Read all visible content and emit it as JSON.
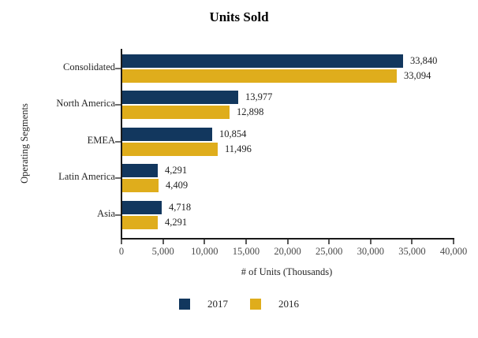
{
  "chart_data": {
    "type": "bar",
    "orientation": "horizontal",
    "title": "Units Sold",
    "xlabel": "# of Units (Thousands)",
    "ylabel": "Operating Segments",
    "categories": [
      "Consolidated",
      "North America",
      "EMEA",
      "Latin America",
      "Asia"
    ],
    "series": [
      {
        "name": "2017",
        "color": "#12375E",
        "values": [
          33840,
          13977,
          10854,
          4291,
          4718
        ],
        "value_labels": [
          "33,840",
          "13,977",
          "10,854",
          "4,291",
          "4,718"
        ]
      },
      {
        "name": "2016",
        "color": "#DFAD1C",
        "values": [
          33094,
          12898,
          11496,
          4409,
          4291
        ],
        "value_labels": [
          "33,094",
          "12,898",
          "11,496",
          "4,409",
          "4,291"
        ]
      }
    ],
    "xlim": [
      0,
      40000
    ],
    "xticks": [
      0,
      5000,
      10000,
      15000,
      20000,
      25000,
      30000,
      35000,
      40000
    ],
    "xtick_labels": [
      "0",
      "5,000",
      "10,000",
      "15,000",
      "20,000",
      "25,000",
      "30,000",
      "35,000",
      "40,000"
    ],
    "grid": false,
    "legend_position": "bottom"
  }
}
